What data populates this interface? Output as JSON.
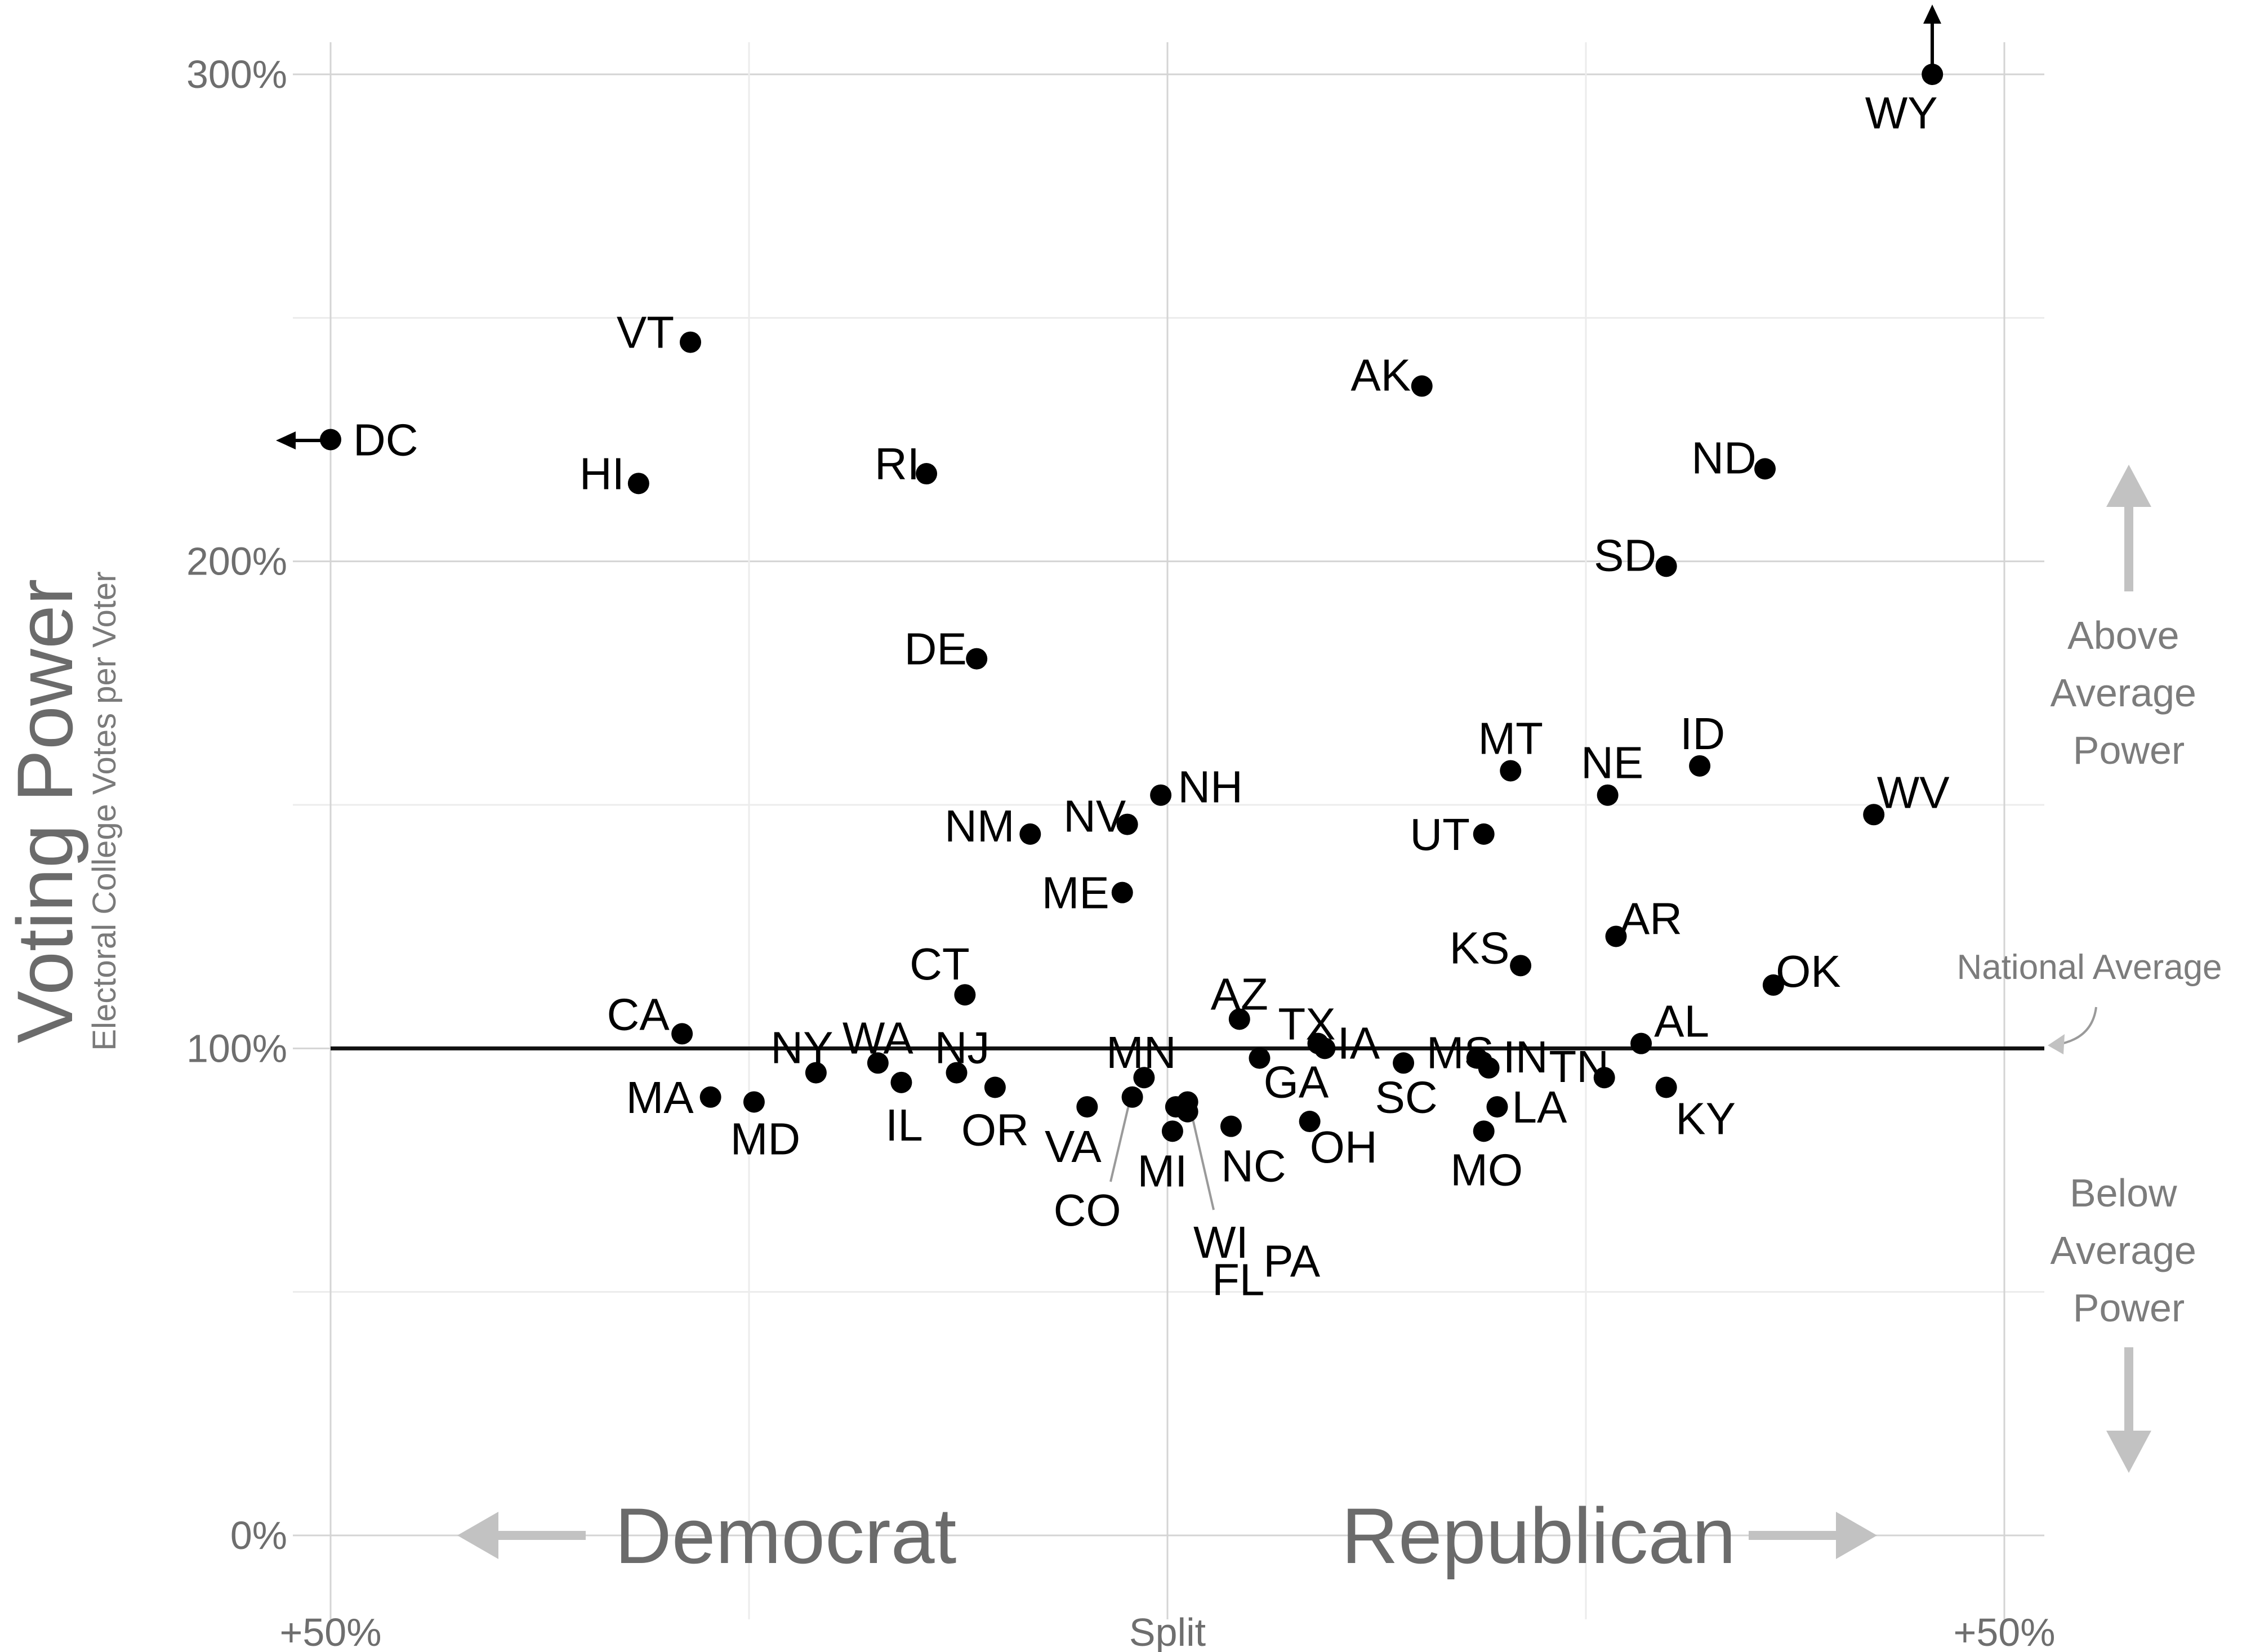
{
  "chart_data": {
    "type": "scatter",
    "title": "",
    "ylabel": "Voting Power",
    "ylabel_sub": "Electoral College Votes per Voter",
    "xlim": [
      -50,
      50
    ],
    "ylim": [
      0,
      300
    ],
    "x_ticks": [
      {
        "value": -50,
        "label": "+50%"
      },
      {
        "value": 0,
        "label": "Split"
      },
      {
        "value": 50,
        "label": "+50%"
      }
    ],
    "y_ticks": [
      {
        "value": 0,
        "label": "0%"
      },
      {
        "value": 100,
        "label": "100%"
      },
      {
        "value": 200,
        "label": "200%"
      },
      {
        "value": 300,
        "label": "300%"
      }
    ],
    "grid": true,
    "reference_line": {
      "y": 100,
      "label": "National Average"
    },
    "direction_labels": {
      "left": "Democrat",
      "right": "Republican",
      "up": [
        "Above",
        "Average",
        "Power"
      ],
      "down": [
        "Below",
        "Average",
        "Power"
      ]
    },
    "points": [
      {
        "label": "DC",
        "x": -50,
        "y": 225
      },
      {
        "label": "WY",
        "x": 45.7,
        "y": 300
      },
      {
        "label": "VT",
        "x": -28.5,
        "y": 245
      },
      {
        "label": "HI",
        "x": -31.6,
        "y": 216
      },
      {
        "label": "RI",
        "x": -14.4,
        "y": 218
      },
      {
        "label": "AK",
        "x": 15.2,
        "y": 236
      },
      {
        "label": "ND",
        "x": 35.7,
        "y": 219
      },
      {
        "label": "SD",
        "x": 29.8,
        "y": 199
      },
      {
        "label": "DE",
        "x": -11.4,
        "y": 180
      },
      {
        "label": "MT",
        "x": 20.5,
        "y": 157
      },
      {
        "label": "NE",
        "x": 26.3,
        "y": 152
      },
      {
        "label": "ID",
        "x": 31.8,
        "y": 158
      },
      {
        "label": "WV",
        "x": 42.2,
        "y": 148
      },
      {
        "label": "NM",
        "x": -8.2,
        "y": 144
      },
      {
        "label": "NV",
        "x": -2.4,
        "y": 146
      },
      {
        "label": "NH",
        "x": -0.4,
        "y": 152
      },
      {
        "label": "UT",
        "x": 18.9,
        "y": 144
      },
      {
        "label": "ME",
        "x": -2.7,
        "y": 132
      },
      {
        "label": "AR",
        "x": 26.8,
        "y": 123
      },
      {
        "label": "KS",
        "x": 21.1,
        "y": 117
      },
      {
        "label": "OK",
        "x": 36.2,
        "y": 113
      },
      {
        "label": "CT",
        "x": -12.1,
        "y": 111
      },
      {
        "label": "CA",
        "x": -29.0,
        "y": 103
      },
      {
        "label": "AZ",
        "x": 4.3,
        "y": 106
      },
      {
        "label": "TX",
        "x": 9.0,
        "y": 101
      },
      {
        "label": "IA",
        "x": 9.4,
        "y": 100
      },
      {
        "label": "AL",
        "x": 28.3,
        "y": 101
      },
      {
        "label": "MS",
        "x": 18.5,
        "y": 98
      },
      {
        "label": "IN",
        "x": 19.2,
        "y": 96
      },
      {
        "label": "TN",
        "x": 26.1,
        "y": 94
      },
      {
        "label": "SC",
        "x": 14.1,
        "y": 97
      },
      {
        "label": "GA",
        "x": 5.5,
        "y": 98
      },
      {
        "label": "NY",
        "x": -21.0,
        "y": 95
      },
      {
        "label": "WA",
        "x": -17.3,
        "y": 97
      },
      {
        "label": "NJ",
        "x": -12.6,
        "y": 95
      },
      {
        "label": "IL",
        "x": -15.9,
        "y": 93
      },
      {
        "label": "OR",
        "x": -10.3,
        "y": 92
      },
      {
        "label": "MN",
        "x": -1.4,
        "y": 94
      },
      {
        "label": "KY",
        "x": 29.8,
        "y": 92
      },
      {
        "label": "MA",
        "x": -27.3,
        "y": 90
      },
      {
        "label": "MD",
        "x": -24.7,
        "y": 89
      },
      {
        "label": "VA",
        "x": -4.8,
        "y": 88
      },
      {
        "label": "CO",
        "x": -2.1,
        "y": 90
      },
      {
        "label": "FL",
        "x": 1.2,
        "y": 89
      },
      {
        "label": "PA",
        "x": 1.2,
        "y": 87
      },
      {
        "label": "LA",
        "x": 19.7,
        "y": 88
      },
      {
        "label": "OH",
        "x": 8.5,
        "y": 85
      },
      {
        "label": "NC",
        "x": 3.8,
        "y": 84
      },
      {
        "label": "MI",
        "x": 0.3,
        "y": 83
      },
      {
        "label": "WI",
        "x": 0.5,
        "y": 88
      },
      {
        "label": "MO",
        "x": 18.9,
        "y": 83
      }
    ]
  }
}
